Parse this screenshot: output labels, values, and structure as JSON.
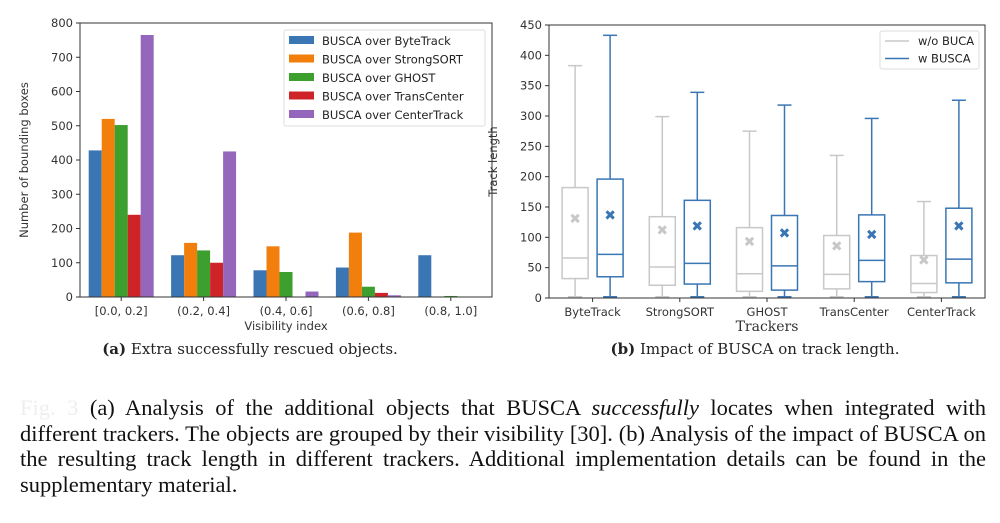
{
  "chart_data": [
    {
      "type": "bar",
      "ylabel": "Number of bounding boxes",
      "xlabel": "Visibility index",
      "categories": [
        "[0.0, 0.2]",
        "(0.2, 0.4]",
        "(0.4, 0.6]",
        "(0.6, 0.8]",
        "(0.8, 1.0]"
      ],
      "ylim": [
        0,
        800
      ],
      "yticks": [
        0,
        100,
        200,
        300,
        400,
        500,
        600,
        700,
        800
      ],
      "legend": "top-right",
      "series": [
        {
          "name": "BUSCA over ByteTrack",
          "color": "#3a76b4",
          "values": [
            428,
            122,
            78,
            86,
            122
          ]
        },
        {
          "name": "BUSCA over StrongSORT",
          "color": "#f27f0c",
          "values": [
            520,
            158,
            148,
            188,
            0
          ]
        },
        {
          "name": "BUSCA over GHOST",
          "color": "#3c9f2e",
          "values": [
            502,
            136,
            73,
            30,
            3
          ]
        },
        {
          "name": "BUSCA over TransCenter",
          "color": "#cf2427",
          "values": [
            240,
            100,
            0,
            12,
            0
          ]
        },
        {
          "name": "BUSCA over CenterTrack",
          "color": "#9467bd",
          "values": [
            765,
            425,
            16,
            5,
            0
          ]
        }
      ]
    },
    {
      "type": "box",
      "ylabel": "Track length",
      "xlabel": "Trackers",
      "categories": [
        "ByteTrack",
        "StrongSORT",
        "GHOST",
        "TransCenter",
        "CenterTrack"
      ],
      "ylim": [
        0,
        450
      ],
      "yticks": [
        0,
        50,
        100,
        150,
        200,
        250,
        300,
        350,
        400,
        450
      ],
      "legend": "top-right",
      "series": [
        {
          "name": "w/o BUCA",
          "color": "#c8c8c8",
          "boxes": [
            {
              "min": 2,
              "q1": 32,
              "median": 66,
              "q3": 182,
              "max": 383,
              "mean": 131
            },
            {
              "min": 2,
              "q1": 21,
              "median": 51,
              "q3": 134,
              "max": 299,
              "mean": 112
            },
            {
              "min": 2,
              "q1": 11,
              "median": 40,
              "q3": 116,
              "max": 275,
              "mean": 93
            },
            {
              "min": 2,
              "q1": 15,
              "median": 39,
              "q3": 103,
              "max": 235,
              "mean": 86
            },
            {
              "min": 2,
              "q1": 9,
              "median": 24,
              "q3": 70,
              "max": 159,
              "mean": 63
            }
          ]
        },
        {
          "name": "w BUSCA",
          "color": "#3a76b4",
          "boxes": [
            {
              "min": 2,
              "q1": 35,
              "median": 72,
              "q3": 196,
              "max": 433,
              "mean": 137
            },
            {
              "min": 2,
              "q1": 23,
              "median": 57,
              "q3": 161,
              "max": 339,
              "mean": 119
            },
            {
              "min": 2,
              "q1": 13,
              "median": 53,
              "q3": 136,
              "max": 318,
              "mean": 107
            },
            {
              "min": 2,
              "q1": 27,
              "median": 62,
              "q3": 137,
              "max": 296,
              "mean": 105
            },
            {
              "min": 2,
              "q1": 25,
              "median": 64,
              "q3": 148,
              "max": 326,
              "mean": 119
            }
          ]
        }
      ]
    }
  ],
  "captions": {
    "a_label": "(a)",
    "a_text": " Extra successfully rescued objects.",
    "b_label": "(b)",
    "b_text": " Impact of BUSCA on track length."
  },
  "body": {
    "fig": "Fig. 3",
    "p1": " (a) Analysis of the additional objects that BUSCA ",
    "em": "successfully",
    "p2": " locates when integrated with different trackers. The objects are grouped by their visibility [30]. (b) Analysis of the impact of BUSCA on the resulting track length in different trackers. Additional implementation details can be found in the supplementary material."
  }
}
